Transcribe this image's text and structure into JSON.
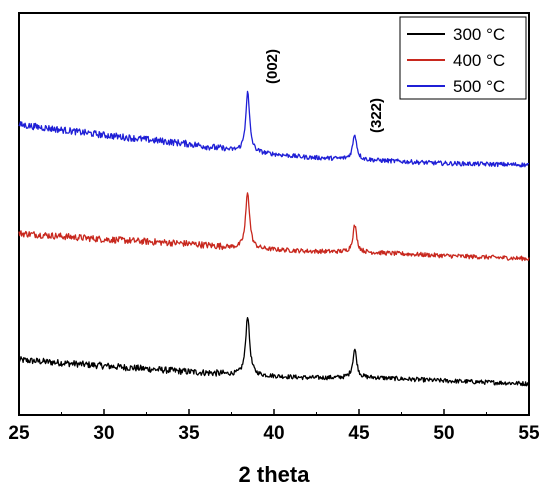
{
  "chart_data": {
    "type": "line",
    "title": "",
    "xlabel": "2 theta",
    "ylabel": "",
    "xlim": [
      25,
      55
    ],
    "xticks": [
      "25",
      "30",
      "35",
      "40",
      "45",
      "50",
      "55"
    ],
    "yticks_visible": false,
    "grid": false,
    "legend_position": "top-right",
    "annotations": [
      {
        "text": "(002)",
        "x": 38.4
      },
      {
        "text": "(322)",
        "x": 44.8
      }
    ],
    "series": [
      {
        "name": "300 °C",
        "color": "#000000",
        "baseline": [
          [
            25,
            0.12
          ],
          [
            30,
            0.08
          ],
          [
            35,
            0.04
          ],
          [
            38,
            0.02
          ],
          [
            42,
            0.0
          ],
          [
            46,
            0.0
          ],
          [
            50,
            -0.02
          ],
          [
            55,
            -0.04
          ]
        ],
        "peaks": [
          {
            "x": 38.45,
            "height": 0.4
          },
          {
            "x": 44.75,
            "height": 0.19
          }
        ]
      },
      {
        "name": "400 °C",
        "color": "#c8281e",
        "baseline": [
          [
            25,
            0.97
          ],
          [
            30,
            0.93
          ],
          [
            35,
            0.9
          ],
          [
            38,
            0.87
          ],
          [
            42,
            0.85
          ],
          [
            46,
            0.84
          ],
          [
            50,
            0.82
          ],
          [
            55,
            0.8
          ]
        ],
        "peaks": [
          {
            "x": 38.45,
            "height": 0.38
          },
          {
            "x": 44.75,
            "height": 0.18
          }
        ]
      },
      {
        "name": "500 °C",
        "color": "#1f1fd6",
        "baseline": [
          [
            25,
            1.7
          ],
          [
            30,
            1.63
          ],
          [
            35,
            1.57
          ],
          [
            38,
            1.52
          ],
          [
            42,
            1.48
          ],
          [
            46,
            1.46
          ],
          [
            50,
            1.44
          ],
          [
            55,
            1.43
          ]
        ],
        "peaks": [
          {
            "x": 38.45,
            "height": 0.4
          },
          {
            "x": 44.75,
            "height": 0.17
          }
        ]
      }
    ]
  }
}
